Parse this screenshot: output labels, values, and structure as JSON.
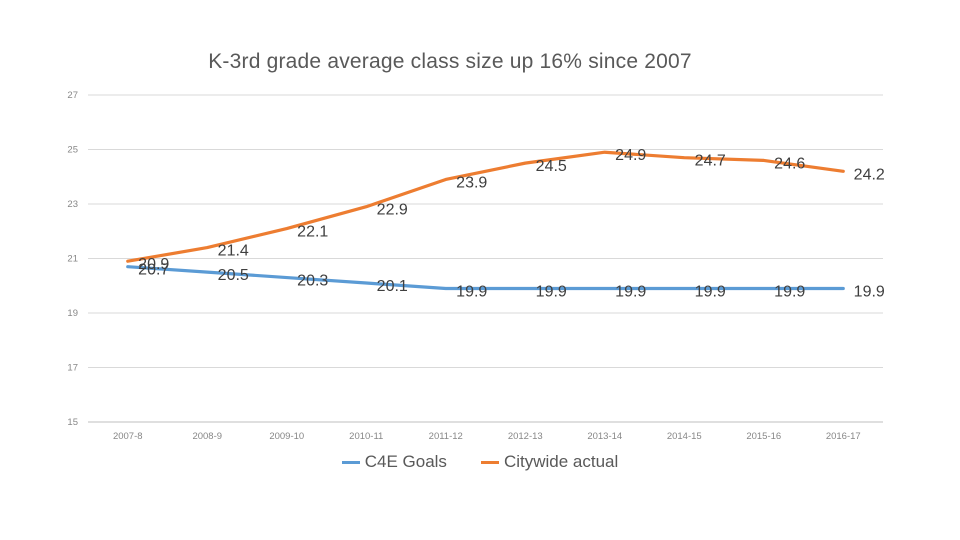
{
  "chart_data": {
    "type": "line",
    "title": "K-3rd grade average class size up 16% since 2007",
    "categories": [
      "2007-8",
      "2008-9",
      "2009-10",
      "2010-11",
      "2011-12",
      "2012-13",
      "2013-14",
      "2014-15",
      "2015-16",
      "2016-17"
    ],
    "series": [
      {
        "name": "C4E Goals",
        "color": "#5B9BD5",
        "values": [
          20.7,
          20.5,
          20.3,
          20.1,
          19.9,
          19.9,
          19.9,
          19.9,
          19.9,
          19.9
        ]
      },
      {
        "name": "Citywide actual",
        "color": "#ED7D31",
        "values": [
          20.9,
          21.4,
          22.1,
          22.9,
          23.9,
          24.5,
          24.9,
          24.7,
          24.6,
          24.2
        ]
      }
    ],
    "ylim": [
      15,
      27
    ],
    "yticks": [
      15,
      17,
      19,
      21,
      23,
      25,
      27
    ],
    "grid": true,
    "data_labels": true,
    "legend_position": "bottom"
  },
  "colors": {
    "gridline": "#D9D9D9",
    "axis_line": "#BFBFBF",
    "tick_label": "#878787",
    "data_label": "#3F3F3F",
    "title": "#595959"
  }
}
